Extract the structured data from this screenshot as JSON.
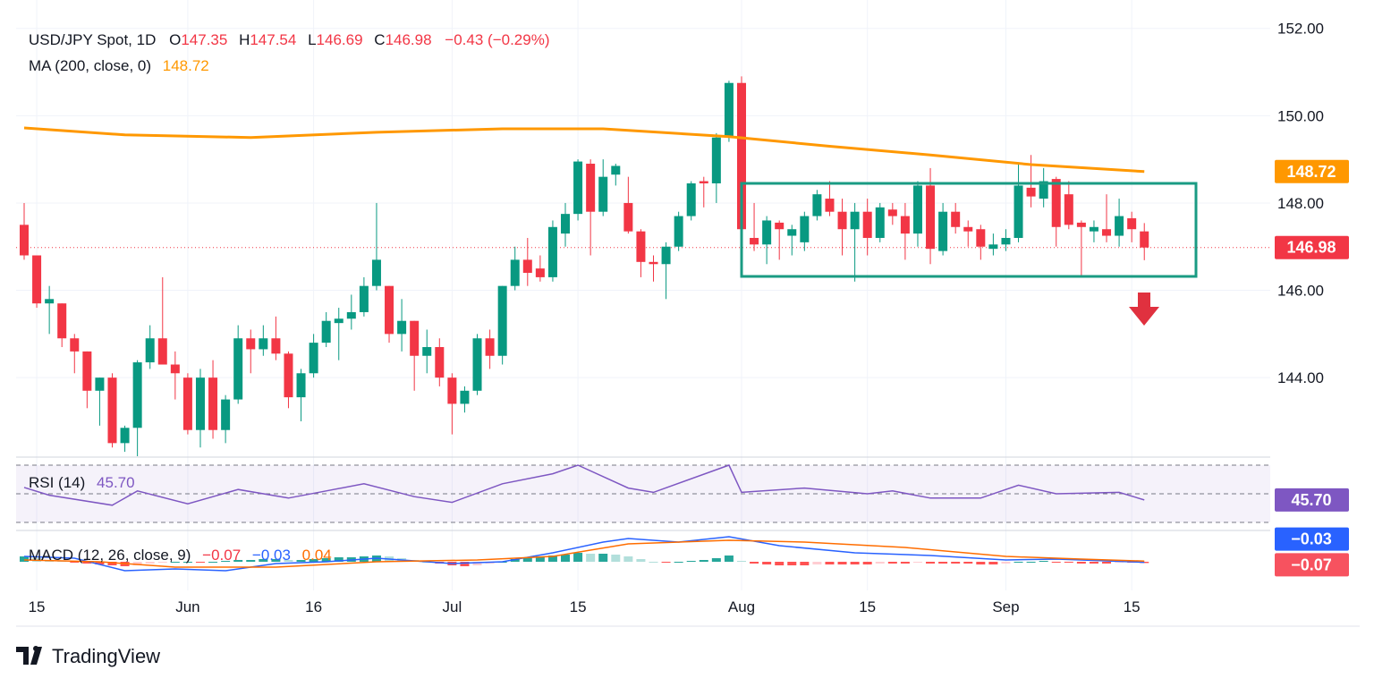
{
  "chart_data": {
    "type": "candlestick",
    "title": "USD/JPY Spot, 1D",
    "ohlc_header": [
      {
        "key": "O",
        "value": "147.35"
      },
      {
        "key": "H",
        "value": "147.54"
      },
      {
        "key": "L",
        "value": "146.69"
      },
      {
        "key": "C",
        "value": "146.98"
      }
    ],
    "change": "−0.43 (−0.29%)",
    "up_color": "#089981",
    "down_color": "#f23645",
    "open": [
      147.5,
      146.8,
      145.7,
      145.7,
      144.9,
      144.6,
      143.7,
      144.0,
      142.5,
      142.85,
      144.35,
      144.9,
      144.3,
      144.0,
      142.8,
      144.0,
      142.8,
      143.5,
      144.9,
      144.65,
      144.9,
      144.55,
      143.55,
      144.1,
      144.8,
      145.25,
      145.35,
      145.5,
      146.1,
      146.1,
      145.0,
      145.3,
      144.5,
      144.7,
      144.0,
      143.4,
      143.7,
      144.9,
      144.5,
      146.1,
      146.7,
      146.5,
      146.3,
      147.3,
      147.75,
      148.9,
      147.8,
      148.65,
      148.0,
      147.35,
      146.65,
      146.6,
      147.0,
      147.7,
      148.5,
      148.45,
      149.5,
      150.75,
      147.2,
      147.05,
      147.55,
      147.25,
      147.1,
      147.7,
      148.1,
      147.8,
      147.4,
      147.8,
      147.2,
      147.85,
      147.7,
      147.3,
      148.4,
      146.9,
      147.8,
      147.45,
      147.4,
      146.95,
      147.05,
      147.2,
      148.35,
      148.1,
      148.55,
      148.2,
      147.55,
      147.35,
      147.4,
      147.25,
      147.65,
      147.35
    ],
    "high": [
      148.0,
      146.8,
      146.1,
      145.7,
      145.0,
      144.6,
      144.0,
      144.1,
      142.9,
      144.4,
      145.2,
      146.3,
      144.6,
      144.1,
      144.2,
      144.4,
      143.6,
      145.2,
      145.1,
      145.2,
      145.4,
      144.6,
      144.2,
      145.0,
      145.5,
      145.6,
      145.9,
      146.3,
      148.0,
      146.1,
      145.8,
      145.3,
      145.1,
      144.9,
      144.1,
      143.8,
      145.0,
      145.1,
      146.1,
      147.0,
      147.2,
      146.8,
      147.6,
      148.0,
      149.0,
      149.0,
      149.0,
      148.9,
      148.6,
      147.4,
      146.8,
      147.1,
      147.8,
      148.5,
      148.6,
      149.6,
      150.8,
      150.9,
      148.0,
      147.7,
      147.6,
      147.5,
      147.8,
      148.3,
      148.5,
      148.1,
      148.0,
      148.1,
      148.0,
      148.0,
      148.0,
      148.5,
      148.8,
      148.0,
      148.0,
      147.6,
      147.5,
      147.3,
      147.4,
      148.9,
      149.1,
      148.8,
      148.6,
      148.5,
      147.6,
      147.6,
      148.2,
      148.1,
      147.8,
      147.54
    ],
    "low": [
      146.7,
      145.6,
      145.0,
      144.7,
      144.1,
      143.3,
      142.9,
      142.4,
      142.3,
      142.2,
      144.2,
      144.3,
      143.5,
      142.7,
      142.4,
      142.6,
      142.5,
      143.4,
      144.1,
      144.5,
      144.4,
      143.3,
      143.0,
      144.0,
      144.7,
      144.4,
      145.1,
      145.4,
      146.0,
      144.8,
      144.6,
      143.7,
      144.1,
      143.8,
      142.7,
      143.2,
      143.6,
      144.2,
      144.3,
      146.0,
      146.1,
      146.2,
      146.2,
      147.0,
      147.6,
      146.8,
      147.7,
      148.4,
      147.3,
      146.3,
      146.2,
      145.8,
      146.9,
      147.6,
      147.9,
      148.0,
      149.4,
      147.2,
      146.9,
      146.6,
      146.7,
      146.8,
      146.9,
      147.6,
      147.7,
      146.8,
      146.2,
      146.8,
      147.1,
      147.5,
      146.7,
      147.0,
      146.6,
      146.8,
      147.3,
      147.0,
      146.7,
      146.8,
      146.9,
      147.1,
      147.9,
      147.9,
      147.0,
      147.4,
      146.3,
      147.1,
      147.1,
      147.0,
      147.1,
      146.69
    ],
    "close": [
      146.8,
      145.7,
      145.8,
      144.9,
      144.6,
      143.7,
      144.0,
      142.5,
      142.85,
      144.35,
      144.9,
      144.3,
      144.1,
      142.8,
      144.0,
      142.8,
      143.5,
      144.9,
      144.65,
      144.9,
      144.55,
      143.55,
      144.1,
      144.8,
      145.3,
      145.35,
      145.5,
      146.1,
      146.7,
      145.0,
      145.3,
      144.5,
      144.7,
      144.0,
      143.4,
      143.7,
      144.9,
      144.5,
      146.1,
      146.7,
      146.4,
      146.3,
      147.45,
      147.75,
      148.95,
      147.8,
      148.6,
      148.85,
      147.35,
      146.65,
      146.6,
      147.0,
      147.7,
      148.45,
      148.45,
      149.5,
      150.75,
      147.4,
      147.05,
      147.6,
      147.4,
      147.4,
      147.7,
      148.2,
      147.8,
      147.4,
      147.8,
      147.2,
      147.9,
      147.7,
      147.3,
      148.4,
      146.95,
      147.8,
      147.45,
      147.35,
      147.0,
      147.05,
      147.2,
      148.4,
      148.15,
      148.5,
      147.45,
      147.5,
      147.45,
      147.45,
      147.25,
      147.7,
      147.4,
      146.98
    ],
    "ylim": [
      142.2,
      152.65
    ],
    "yticks": [
      {
        "value": 144,
        "label": "144.00"
      },
      {
        "value": 146,
        "label": "146.00"
      },
      {
        "value": 148,
        "label": "148.00"
      },
      {
        "value": 150,
        "label": "150.00"
      },
      {
        "value": 152,
        "label": "152.00"
      }
    ],
    "xticks": [
      {
        "value": 1,
        "label": "15"
      },
      {
        "value": 13,
        "label": "Jun"
      },
      {
        "value": 23,
        "label": "16"
      },
      {
        "value": 34,
        "label": "Jul"
      },
      {
        "value": 44,
        "label": "15"
      },
      {
        "value": 57,
        "label": "Aug"
      },
      {
        "value": 67,
        "label": "15"
      },
      {
        "value": 78,
        "label": "Sep"
      },
      {
        "value": 88,
        "label": "15"
      }
    ],
    "grid": true,
    "last_price": {
      "value": 146.98,
      "label": "146.98"
    },
    "ma": {
      "name": "MA (200, close, 0)",
      "color": "#ff9800",
      "last_label": "148.72",
      "x": [
        0,
        8,
        18,
        28,
        38,
        46,
        56,
        64,
        72,
        80,
        89
      ],
      "values": [
        149.72,
        149.56,
        149.5,
        149.62,
        149.7,
        149.7,
        149.52,
        149.3,
        149.1,
        148.88,
        148.72
      ]
    },
    "rsi": {
      "name": "RSI (14)",
      "label": "45.70",
      "color": "#7e57c2",
      "ylim": [
        25,
        75
      ],
      "levels": [
        70,
        50,
        30
      ],
      "x": [
        0,
        2,
        7,
        9,
        13,
        17,
        21,
        24,
        27,
        31,
        34,
        38,
        42,
        44,
        48,
        50,
        56,
        57,
        62,
        67,
        69,
        72,
        76,
        79,
        82,
        87,
        89
      ],
      "values": [
        54.4,
        49,
        42,
        52,
        43,
        53,
        47,
        52,
        57,
        48,
        44,
        57,
        64,
        70,
        54,
        51,
        70,
        51,
        54,
        50,
        52,
        47,
        47,
        56,
        50,
        51,
        45.7
      ]
    },
    "macd": {
      "name": "MACD (12, 26, close, 9)",
      "ylim": [
        -1.6,
        1.7
      ],
      "hist_label": "−0.07",
      "macd_label": "−0.03",
      "signal_label": "0.04",
      "macd_color": "#2962ff",
      "signal_color": "#ff6d00",
      "histogram": [
        0.3,
        0.2,
        0.1,
        0.05,
        -0.05,
        -0.1,
        -0.15,
        -0.2,
        -0.25,
        -0.2,
        -0.1,
        -0.05,
        0,
        0,
        -0.05,
        0,
        0.05,
        0.1,
        0.1,
        0.15,
        0.15,
        0.1,
        0.1,
        0.15,
        0.2,
        0.25,
        0.25,
        0.3,
        0.35,
        0.3,
        0.2,
        0.1,
        0,
        -0.1,
        -0.2,
        -0.25,
        -0.2,
        -0.1,
        0,
        0.15,
        0.25,
        0.3,
        0.35,
        0.4,
        0.5,
        0.45,
        0.45,
        0.4,
        0.3,
        0.15,
        0,
        -0.05,
        0,
        0.05,
        0.1,
        0.2,
        0.35,
        0.05,
        -0.1,
        -0.15,
        -0.2,
        -0.2,
        -0.2,
        -0.15,
        -0.15,
        -0.15,
        -0.15,
        -0.15,
        -0.1,
        -0.1,
        -0.1,
        -0.05,
        -0.1,
        -0.1,
        -0.1,
        -0.1,
        -0.15,
        -0.15,
        -0.1,
        0,
        0,
        0.05,
        -0.05,
        -0.05,
        -0.1,
        -0.1,
        -0.1,
        -0.05,
        -0.05,
        -0.07
      ],
      "macd_x": [
        0,
        4,
        8,
        12,
        16,
        20,
        24,
        28,
        34,
        38,
        42,
        46,
        48,
        52,
        56,
        60,
        66,
        72,
        78,
        82,
        89
      ],
      "macd_values": [
        0.3,
        0.2,
        -0.5,
        -0.4,
        -0.5,
        -0.1,
        0,
        0.2,
        -0.1,
        0,
        0.5,
        1.1,
        1.3,
        1.1,
        1.4,
        0.9,
        0.5,
        0.35,
        0.1,
        0.15,
        -0.03
      ],
      "signal_x": [
        0,
        6,
        12,
        20,
        28,
        36,
        42,
        48,
        56,
        62,
        70,
        78,
        84,
        89
      ],
      "signal_values": [
        0.1,
        0,
        -0.3,
        -0.3,
        0,
        0.1,
        0.3,
        1.0,
        1.2,
        1.1,
        0.8,
        0.3,
        0.15,
        0.04
      ]
    },
    "brand": "TradingView"
  }
}
